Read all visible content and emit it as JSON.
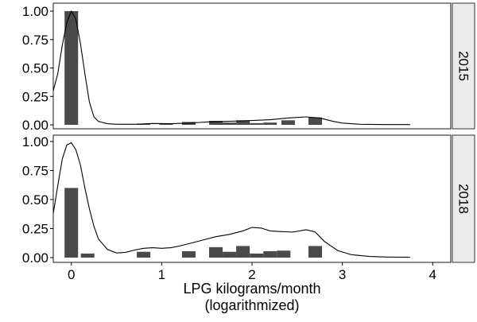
{
  "chart_data": {
    "type": "bar",
    "xlabel_line1": "LPG kilograms/month",
    "xlabel_line2": "(logarithmized)",
    "x_ticks": [
      "0",
      "1",
      "2",
      "3",
      "4"
    ],
    "x_tick_values": [
      0,
      1,
      2,
      3,
      4
    ],
    "xlim": [
      -0.2,
      4.2
    ],
    "y_ticks": [
      "0.00",
      "0.25",
      "0.50",
      "0.75",
      "1.00"
    ],
    "y_tick_values": [
      0,
      0.25,
      0.5,
      0.75,
      1.0
    ],
    "ylim": [
      0,
      1.0
    ],
    "bin_width": 0.15,
    "grid": false,
    "panels": [
      {
        "strip_label": "2015",
        "bars": [
          {
            "x": 0.0,
            "value": 1.0
          },
          {
            "x": 0.8,
            "value": 0.01
          },
          {
            "x": 1.05,
            "value": 0.01
          },
          {
            "x": 1.3,
            "value": 0.025
          },
          {
            "x": 1.6,
            "value": 0.035
          },
          {
            "x": 1.75,
            "value": 0.02
          },
          {
            "x": 1.9,
            "value": 0.04
          },
          {
            "x": 2.05,
            "value": 0.015
          },
          {
            "x": 2.2,
            "value": 0.02
          },
          {
            "x": 2.4,
            "value": 0.04
          },
          {
            "x": 2.7,
            "value": 0.065
          }
        ],
        "density": [
          [
            -0.2,
            0.3
          ],
          [
            -0.15,
            0.45
          ],
          [
            -0.1,
            0.7
          ],
          [
            -0.05,
            0.9
          ],
          [
            0.0,
            1.0
          ],
          [
            0.05,
            0.93
          ],
          [
            0.1,
            0.72
          ],
          [
            0.15,
            0.45
          ],
          [
            0.2,
            0.2
          ],
          [
            0.25,
            0.07
          ],
          [
            0.3,
            0.03
          ],
          [
            0.4,
            0.01
          ],
          [
            0.5,
            0.005
          ],
          [
            0.7,
            0.005
          ],
          [
            0.9,
            0.012
          ],
          [
            1.1,
            0.01
          ],
          [
            1.3,
            0.015
          ],
          [
            1.5,
            0.025
          ],
          [
            1.7,
            0.03
          ],
          [
            1.9,
            0.035
          ],
          [
            2.05,
            0.04
          ],
          [
            2.2,
            0.045
          ],
          [
            2.4,
            0.06
          ],
          [
            2.6,
            0.07
          ],
          [
            2.75,
            0.06
          ],
          [
            2.9,
            0.03
          ],
          [
            3.0,
            0.015
          ],
          [
            3.2,
            0.005
          ],
          [
            3.5,
            0.002
          ],
          [
            3.75,
            0.002
          ]
        ]
      },
      {
        "strip_label": "2018",
        "bars": [
          {
            "x": 0.0,
            "value": 0.6
          },
          {
            "x": 0.18,
            "value": 0.035
          },
          {
            "x": 0.8,
            "value": 0.05
          },
          {
            "x": 1.3,
            "value": 0.055
          },
          {
            "x": 1.6,
            "value": 0.09
          },
          {
            "x": 1.75,
            "value": 0.05
          },
          {
            "x": 1.9,
            "value": 0.1
          },
          {
            "x": 2.05,
            "value": 0.035
          },
          {
            "x": 2.2,
            "value": 0.055
          },
          {
            "x": 2.35,
            "value": 0.06
          },
          {
            "x": 2.7,
            "value": 0.1
          }
        ],
        "density": [
          [
            -0.2,
            0.38
          ],
          [
            -0.15,
            0.62
          ],
          [
            -0.1,
            0.85
          ],
          [
            -0.05,
            0.97
          ],
          [
            0.0,
            0.99
          ],
          [
            0.05,
            0.93
          ],
          [
            0.1,
            0.8
          ],
          [
            0.15,
            0.6
          ],
          [
            0.2,
            0.42
          ],
          [
            0.25,
            0.27
          ],
          [
            0.3,
            0.16
          ],
          [
            0.4,
            0.07
          ],
          [
            0.5,
            0.04
          ],
          [
            0.6,
            0.045
          ],
          [
            0.7,
            0.065
          ],
          [
            0.8,
            0.08
          ],
          [
            0.9,
            0.085
          ],
          [
            1.0,
            0.08
          ],
          [
            1.1,
            0.085
          ],
          [
            1.2,
            0.1
          ],
          [
            1.3,
            0.12
          ],
          [
            1.45,
            0.15
          ],
          [
            1.6,
            0.18
          ],
          [
            1.75,
            0.2
          ],
          [
            1.9,
            0.23
          ],
          [
            2.0,
            0.26
          ],
          [
            2.1,
            0.255
          ],
          [
            2.2,
            0.23
          ],
          [
            2.3,
            0.225
          ],
          [
            2.45,
            0.22
          ],
          [
            2.6,
            0.24
          ],
          [
            2.7,
            0.22
          ],
          [
            2.8,
            0.14
          ],
          [
            2.95,
            0.06
          ],
          [
            3.1,
            0.025
          ],
          [
            3.3,
            0.01
          ],
          [
            3.5,
            0.005
          ],
          [
            3.75,
            0.003
          ]
        ]
      }
    ]
  }
}
